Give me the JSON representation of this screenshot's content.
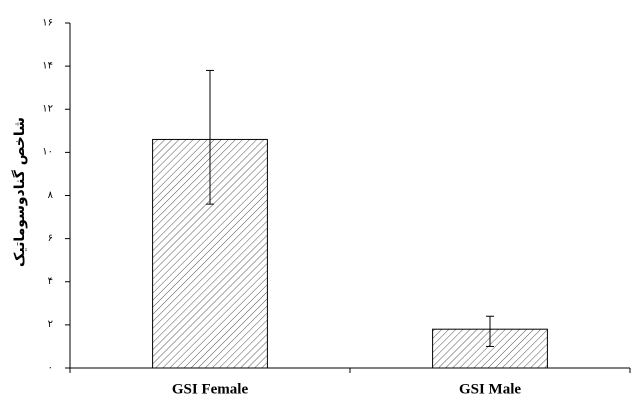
{
  "chart_data": {
    "type": "bar",
    "title": "",
    "xlabel": "",
    "ylabel": "شاخص گنادوسوماتیک",
    "categories": [
      "GSI Female",
      "GSI Male"
    ],
    "values": [
      10.6,
      1.8
    ],
    "error_bars": [
      [
        7.6,
        13.8
      ],
      [
        1.0,
        2.4
      ]
    ],
    "yticks": [
      "۰",
      "۲",
      "۴",
      "۶",
      "۸",
      "۱۰",
      "۱۲",
      "۱۴",
      "۱۶"
    ],
    "ylim": [
      0,
      16
    ],
    "bar_fill": "diagonal-hatch",
    "bar_color": "#555555",
    "grid": false,
    "legend": "none"
  }
}
